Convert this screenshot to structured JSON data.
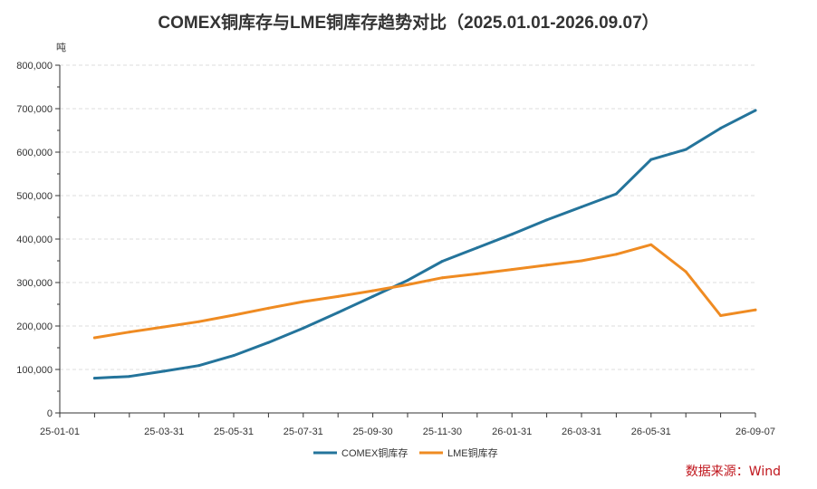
{
  "chart_data": {
    "type": "line",
    "title": "COMEX铜库存与LME铜库存趋势对比（2025.01.01-2026.09.07）",
    "ylabel": "吨",
    "xlabel": "",
    "ylim": [
      0,
      800000
    ],
    "y_ticks": [
      0,
      100000,
      200000,
      300000,
      400000,
      500000,
      600000,
      700000,
      800000
    ],
    "y_tick_labels": [
      "0",
      "100,000",
      "200,000",
      "300,000",
      "400,000",
      "500,000",
      "600,000",
      "700,000",
      "800,000"
    ],
    "x_tick_labels": [
      "25-01-01",
      "25-03-31",
      "25-05-31",
      "25-07-31",
      "25-09-30",
      "25-11-30",
      "26-01-31",
      "26-03-31",
      "26-05-31",
      "26-09-07"
    ],
    "grid": "horizontal dashed",
    "legend_position": "bottom-center",
    "series": [
      {
        "name": "COMEX铜库存",
        "color": "#24749b",
        "values": [
          80000,
          84000,
          96000,
          109000,
          132000,
          162000,
          195000,
          231000,
          268000,
          305000,
          349000,
          380000,
          411000,
          444000,
          474000,
          504000,
          583000,
          606000,
          655000,
          696000
        ]
      },
      {
        "name": "LME铜库存",
        "color": "#ef8b22",
        "values": [
          173000,
          186000,
          198000,
          210000,
          225000,
          241000,
          256000,
          268000,
          281000,
          295000,
          311000,
          320000,
          330000,
          340000,
          350000,
          365000,
          387000,
          325000,
          224000,
          237000
        ]
      }
    ]
  },
  "source_note": "数据来源：Wind"
}
